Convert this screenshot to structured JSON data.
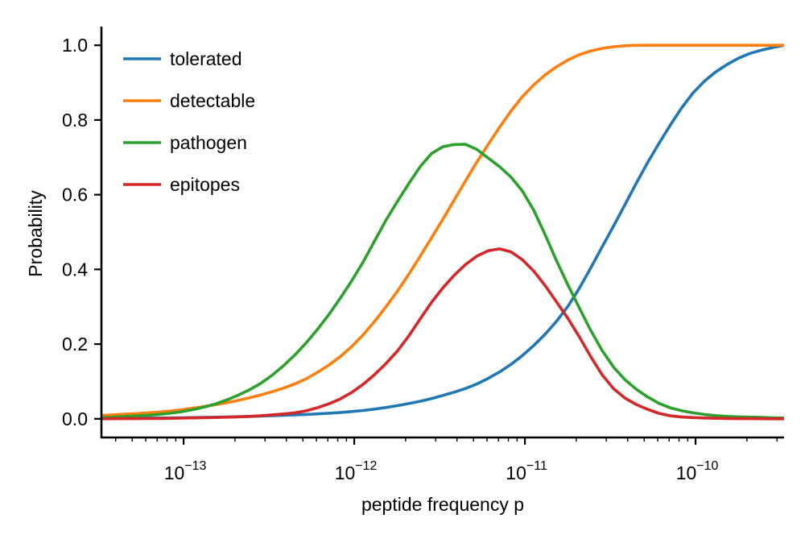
{
  "chart_data": {
    "type": "line",
    "title": "",
    "xlabel": "peptide frequency p",
    "ylabel": "Probability",
    "xscale": "log",
    "xlim": [
      3.3e-14,
      3.3e-10
    ],
    "ylim": [
      -0.05,
      1.05
    ],
    "x_ticks": [
      {
        "value": 1e-13,
        "base": "10",
        "exponent": "−13"
      },
      {
        "value": 1e-12,
        "base": "10",
        "exponent": "−12"
      },
      {
        "value": 1e-11,
        "base": "10",
        "exponent": "−11"
      },
      {
        "value": 1e-10,
        "base": "10",
        "exponent": "−10"
      }
    ],
    "y_ticks": [
      {
        "value": 0.0,
        "label": "0.0"
      },
      {
        "value": 0.2,
        "label": "0.2"
      },
      {
        "value": 0.4,
        "label": "0.4"
      },
      {
        "value": 0.6,
        "label": "0.6"
      },
      {
        "value": 0.8,
        "label": "0.8"
      },
      {
        "value": 1.0,
        "label": "1.0"
      }
    ],
    "legend_position": "top-left",
    "grid": false,
    "series": [
      {
        "name": "tolerated",
        "color": "#1f77b4",
        "logx": [
          -13.5,
          -13.0,
          -12.5,
          -12.0,
          -11.75,
          -11.5,
          -11.25,
          -11.0,
          -10.75,
          -10.5,
          -10.25,
          -10.0,
          -9.75,
          -9.5
        ],
        "y": [
          0.001,
          0.003,
          0.008,
          0.02,
          0.035,
          0.06,
          0.1,
          0.175,
          0.3,
          0.5,
          0.71,
          0.88,
          0.965,
          1.0
        ]
      },
      {
        "name": "detectable",
        "color": "#ff7f0e",
        "logx": [
          -13.5,
          -13.0,
          -12.5,
          -12.25,
          -12.0,
          -11.75,
          -11.5,
          -11.25,
          -11.0,
          -10.75,
          -10.5,
          -10.25,
          -10.0,
          -9.5
        ],
        "y": [
          0.008,
          0.025,
          0.07,
          0.115,
          0.2,
          0.34,
          0.52,
          0.71,
          0.87,
          0.96,
          0.995,
          1.0,
          1.0,
          1.0
        ]
      },
      {
        "name": "pathogen",
        "color": "#2ca02c",
        "logx": [
          -13.5,
          -13.0,
          -12.75,
          -12.5,
          -12.25,
          -12.0,
          -11.75,
          -11.5,
          -11.35,
          -11.25,
          -11.0,
          -10.75,
          -10.5,
          -10.25,
          -10.0,
          -9.5
        ],
        "y": [
          0.002,
          0.02,
          0.05,
          0.11,
          0.22,
          0.38,
          0.58,
          0.725,
          0.735,
          0.71,
          0.6,
          0.36,
          0.15,
          0.05,
          0.015,
          0.002
        ]
      },
      {
        "name": "epitopes",
        "color": "#d62728",
        "logx": [
          -13.5,
          -13.0,
          -12.5,
          -12.25,
          -12.0,
          -11.75,
          -11.5,
          -11.3,
          -11.15,
          -11.0,
          -10.75,
          -10.5,
          -10.25,
          -10.0,
          -9.5
        ],
        "y": [
          0.0,
          0.002,
          0.01,
          0.025,
          0.075,
          0.18,
          0.34,
          0.43,
          0.455,
          0.42,
          0.27,
          0.09,
          0.02,
          0.003,
          0.0
        ]
      }
    ]
  }
}
